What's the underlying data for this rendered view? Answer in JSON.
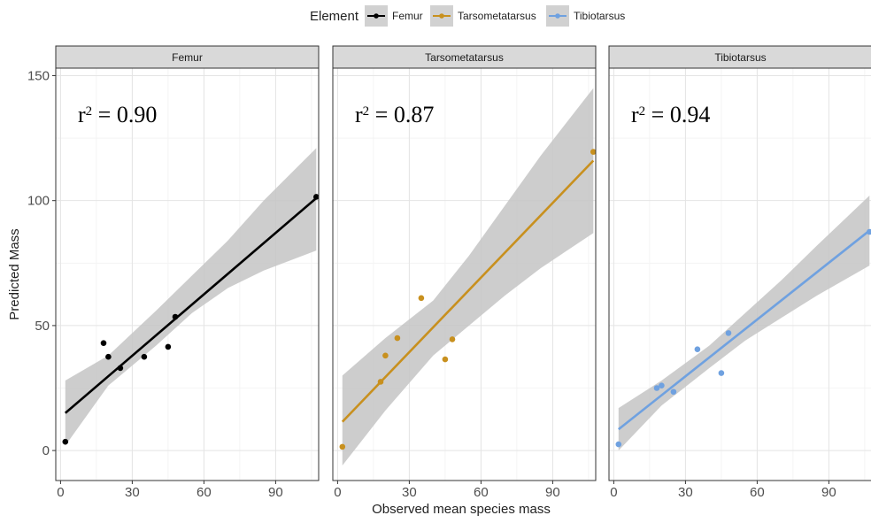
{
  "chart_data": {
    "type": "scatter",
    "xlabel": "Observed mean species mass",
    "ylabel": "Predicted Mass",
    "xlim": [
      -2,
      108
    ],
    "ylim": [
      -12,
      153
    ],
    "x_ticks": [
      0,
      30,
      60,
      90
    ],
    "y_ticks": [
      0,
      50,
      100,
      150
    ],
    "grid": true,
    "legend_position": "top",
    "legend": {
      "title": "Element",
      "items": [
        {
          "label": "Femur",
          "color": "#000000"
        },
        {
          "label": "Tarsometatarsus",
          "color": "#C8901E"
        },
        {
          "label": "Tibiotarsus",
          "color": "#6FA1E0"
        }
      ]
    },
    "panels": [
      {
        "name": "Femur",
        "color": "#000000",
        "r2_label": "r",
        "r2_sup": "2",
        "r2_value": " = 0.90",
        "points": [
          [
            2,
            3.5
          ],
          [
            18,
            43
          ],
          [
            20,
            37.5
          ],
          [
            25,
            33
          ],
          [
            35,
            37.5
          ],
          [
            45,
            41.5
          ],
          [
            48,
            53.5
          ],
          [
            107,
            101.5
          ]
        ],
        "fit": [
          [
            2,
            15
          ],
          [
            107,
            101
          ]
        ],
        "ci_lower": [
          [
            2,
            2
          ],
          [
            20,
            26
          ],
          [
            40,
            42
          ],
          [
            55,
            55
          ],
          [
            70,
            65
          ],
          [
            85,
            72
          ],
          [
            107,
            80
          ]
        ],
        "ci_upper": [
          [
            2,
            28
          ],
          [
            20,
            38
          ],
          [
            40,
            56
          ],
          [
            55,
            70
          ],
          [
            70,
            84
          ],
          [
            85,
            100
          ],
          [
            107,
            121
          ]
        ]
      },
      {
        "name": "Tarsometatarsus",
        "color": "#C8901E",
        "r2_label": "r",
        "r2_sup": "2",
        "r2_value": " = 0.87",
        "points": [
          [
            2,
            1.5
          ],
          [
            18,
            27.5
          ],
          [
            20,
            38
          ],
          [
            25,
            45
          ],
          [
            35,
            61
          ],
          [
            45,
            36.5
          ],
          [
            48,
            44.5
          ],
          [
            107,
            119.5
          ]
        ],
        "fit": [
          [
            2,
            11.5
          ],
          [
            107,
            116
          ]
        ],
        "ci_lower": [
          [
            2,
            -6
          ],
          [
            20,
            16
          ],
          [
            40,
            38
          ],
          [
            55,
            50
          ],
          [
            70,
            62
          ],
          [
            85,
            73
          ],
          [
            107,
            87
          ]
        ],
        "ci_upper": [
          [
            2,
            30
          ],
          [
            20,
            45
          ],
          [
            40,
            60
          ],
          [
            55,
            78
          ],
          [
            70,
            98
          ],
          [
            85,
            118
          ],
          [
            107,
            145
          ]
        ]
      },
      {
        "name": "Tibiotarsus",
        "color": "#6FA1E0",
        "r2_label": "r",
        "r2_sup": "2",
        "r2_value": " = 0.94",
        "points": [
          [
            2,
            2.5
          ],
          [
            18,
            25
          ],
          [
            20,
            26
          ],
          [
            25,
            23.5
          ],
          [
            35,
            40.5
          ],
          [
            45,
            31
          ],
          [
            48,
            47
          ],
          [
            107,
            87.5
          ]
        ],
        "fit": [
          [
            2,
            8.5
          ],
          [
            107,
            88
          ]
        ],
        "ci_lower": [
          [
            2,
            0
          ],
          [
            20,
            18
          ],
          [
            40,
            33
          ],
          [
            55,
            44
          ],
          [
            70,
            53
          ],
          [
            85,
            62
          ],
          [
            107,
            74
          ]
        ],
        "ci_upper": [
          [
            2,
            17
          ],
          [
            20,
            28
          ],
          [
            40,
            42
          ],
          [
            55,
            55
          ],
          [
            70,
            68
          ],
          [
            85,
            82
          ],
          [
            107,
            102
          ]
        ]
      }
    ]
  }
}
